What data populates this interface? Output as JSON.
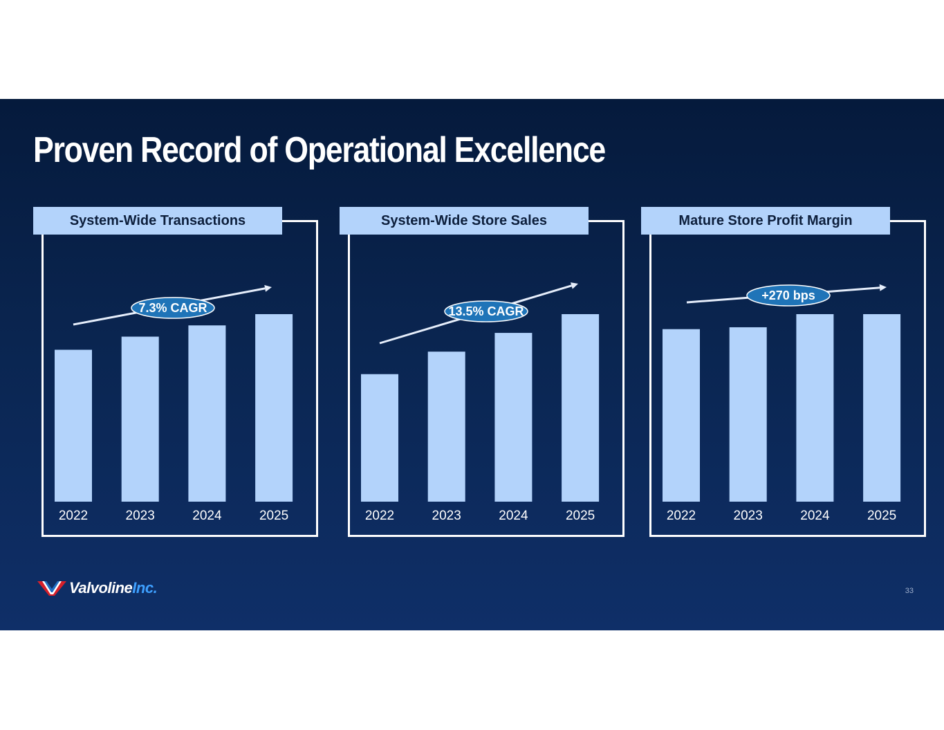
{
  "slide": {
    "title": "Proven Record of Operational Excellence",
    "page_number": "33",
    "logo": {
      "word": "Valvoline",
      "suffix": "Inc."
    }
  },
  "colors": {
    "background": "#0a2550",
    "bar": "#b3d3fb",
    "badge": "#1f74b8",
    "frame": "#ffffff"
  },
  "chart_data": [
    {
      "type": "bar",
      "title": "System-Wide Transactions",
      "categories": [
        "2022",
        "2023",
        "2024",
        "2025"
      ],
      "values": [
        81,
        88,
        94,
        100
      ],
      "ylim": [
        0,
        100
      ],
      "annotation": "7.3% CAGR"
    },
    {
      "type": "bar",
      "title": "System-Wide Store Sales",
      "categories": [
        "2022",
        "2023",
        "2024",
        "2025"
      ],
      "values": [
        68,
        80,
        90,
        100
      ],
      "ylim": [
        0,
        100
      ],
      "annotation": "13.5% CAGR"
    },
    {
      "type": "bar",
      "title": "Mature Store Profit Margin",
      "categories": [
        "2022",
        "2023",
        "2024",
        "2025"
      ],
      "values": [
        92,
        93,
        100,
        100
      ],
      "ylim": [
        0,
        100
      ],
      "annotation": "+270 bps"
    }
  ]
}
